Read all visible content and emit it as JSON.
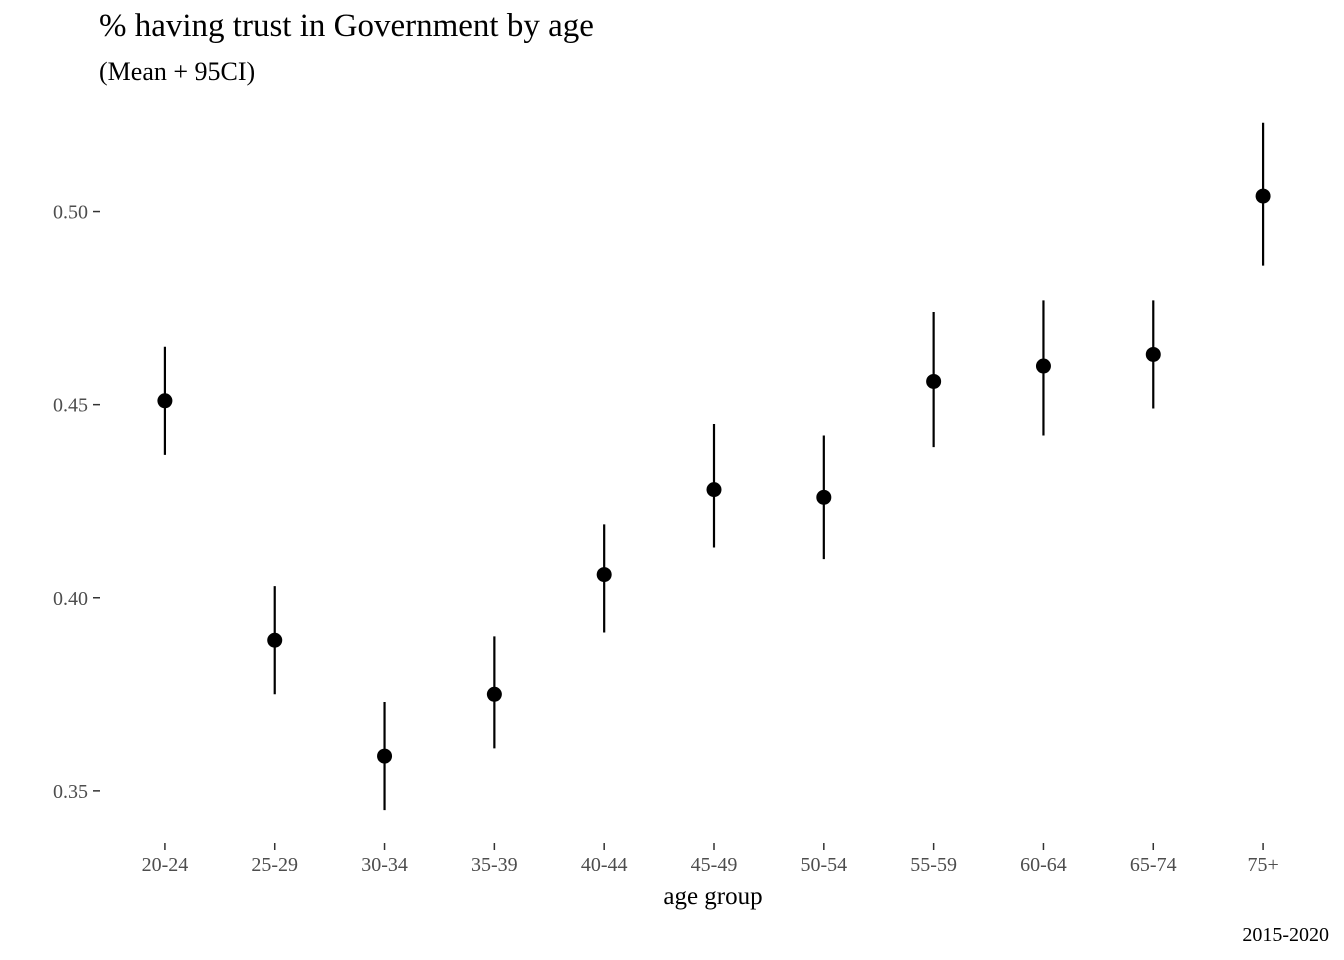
{
  "chart_data": {
    "type": "scatter",
    "title": "% having trust in Government by age",
    "subtitle": "(Mean + 95CI)",
    "xlabel": "age group",
    "ylabel": "",
    "caption": "2015-2020",
    "categories": [
      "20-24",
      "25-29",
      "30-34",
      "35-39",
      "40-44",
      "45-49",
      "50-54",
      "55-59",
      "60-64",
      "65-74",
      "75+"
    ],
    "y_ticks": [
      0.35,
      0.4,
      0.45,
      0.5
    ],
    "y_tick_labels": [
      "0.35",
      "0.40",
      "0.45",
      "0.50"
    ],
    "ylim": [
      0.3365,
      0.525
    ],
    "grid": false,
    "legend": "none",
    "series": [
      {
        "mean": [
          0.451,
          0.389,
          0.359,
          0.375,
          0.406,
          0.428,
          0.426,
          0.456,
          0.46,
          0.463,
          0.504
        ],
        "lower": [
          0.437,
          0.375,
          0.345,
          0.361,
          0.391,
          0.413,
          0.41,
          0.439,
          0.442,
          0.449,
          0.486
        ],
        "upper": [
          0.465,
          0.403,
          0.373,
          0.39,
          0.419,
          0.445,
          0.442,
          0.474,
          0.477,
          0.477,
          0.523
        ]
      }
    ],
    "colors": {
      "point": "#000000",
      "errorbar": "#000000",
      "tick": "#333333",
      "tick_label": "#4d4d4d"
    }
  }
}
